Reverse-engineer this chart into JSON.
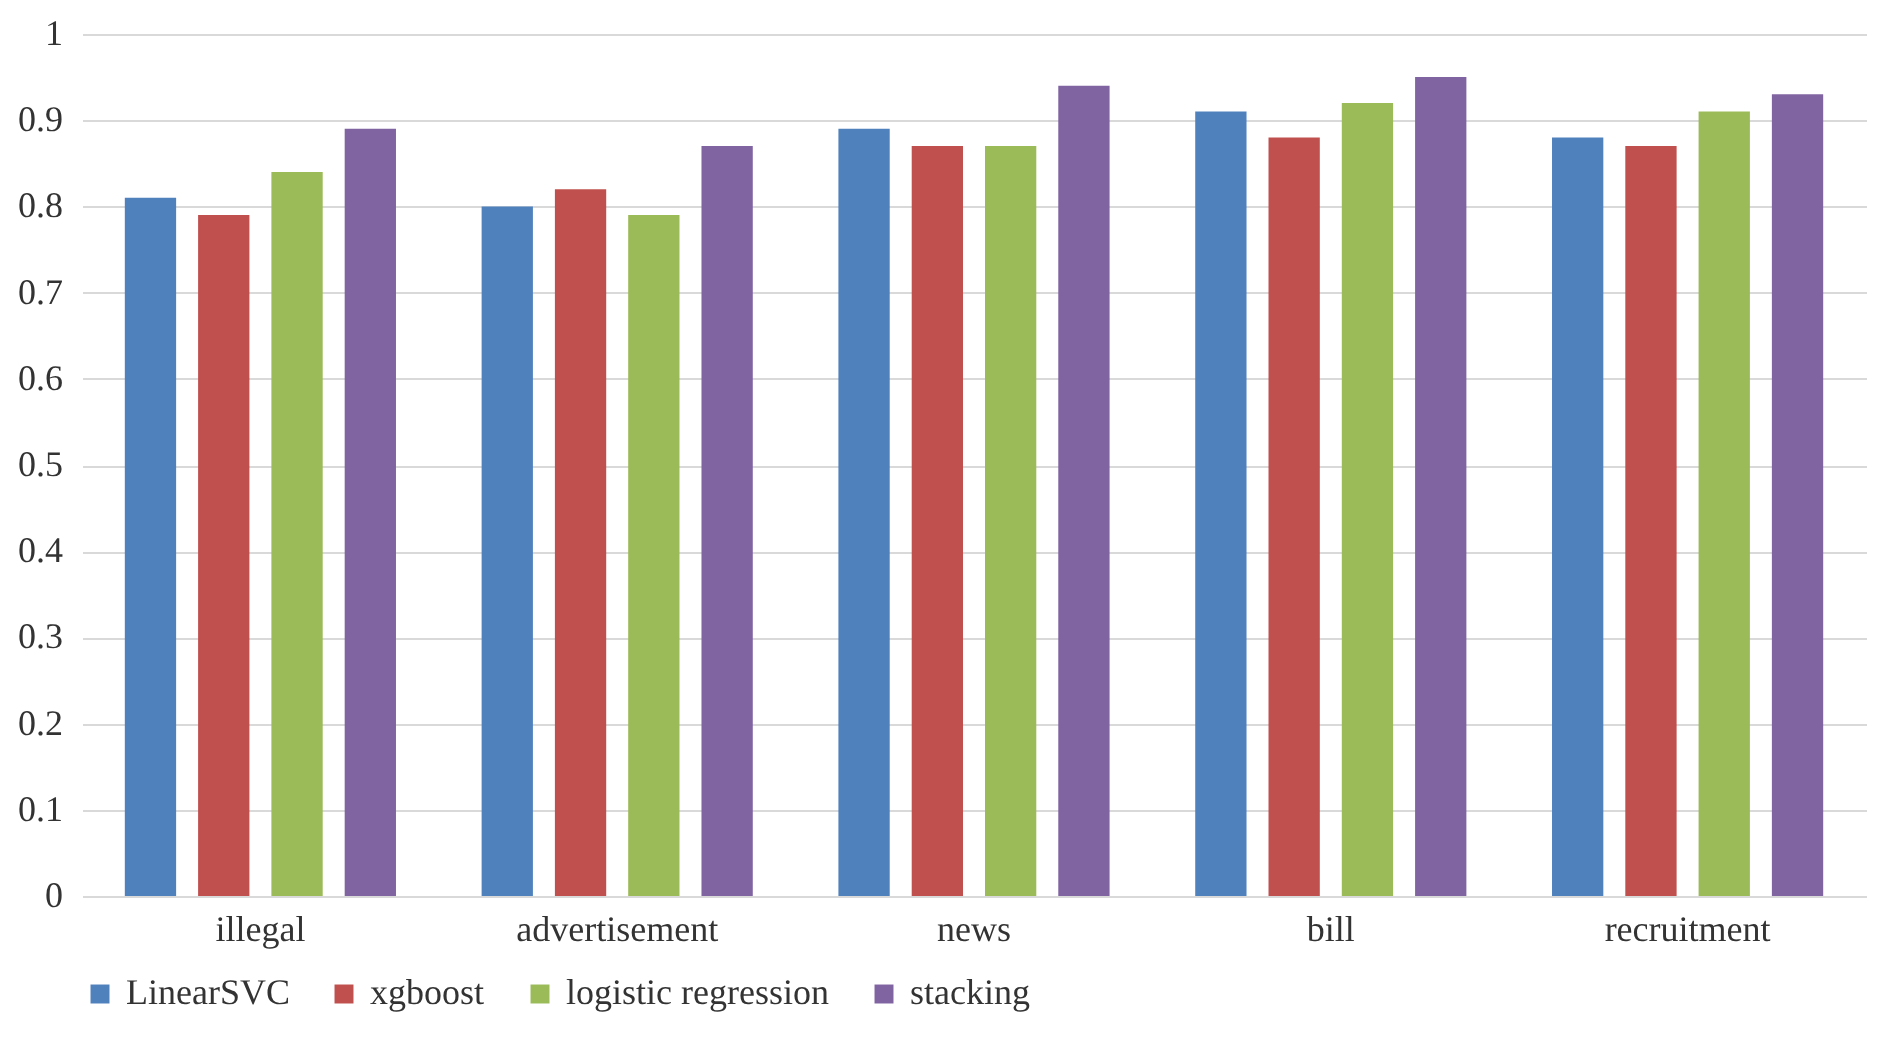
{
  "chart_data": {
    "type": "bar",
    "categories": [
      "illegal",
      "advertisement",
      "news",
      "bill",
      "recruitment"
    ],
    "series": [
      {
        "name": "LinearSVC",
        "color": "#4f81bd",
        "values": [
          0.81,
          0.8,
          0.89,
          0.91,
          0.88
        ]
      },
      {
        "name": "xgboost",
        "color": "#c0504d",
        "values": [
          0.79,
          0.82,
          0.87,
          0.88,
          0.87
        ]
      },
      {
        "name": "logistic regression",
        "color": "#9bbb59",
        "values": [
          0.84,
          0.79,
          0.87,
          0.92,
          0.91
        ]
      },
      {
        "name": "stacking",
        "color": "#8064a2",
        "values": [
          0.89,
          0.87,
          0.94,
          0.95,
          0.93
        ]
      }
    ],
    "ylim": [
      0,
      1
    ],
    "yticks": [
      0,
      0.1,
      0.2,
      0.3,
      0.4,
      0.5,
      0.6,
      0.7,
      0.8,
      0.9,
      1
    ],
    "grid": "y",
    "legend": "bottom"
  }
}
